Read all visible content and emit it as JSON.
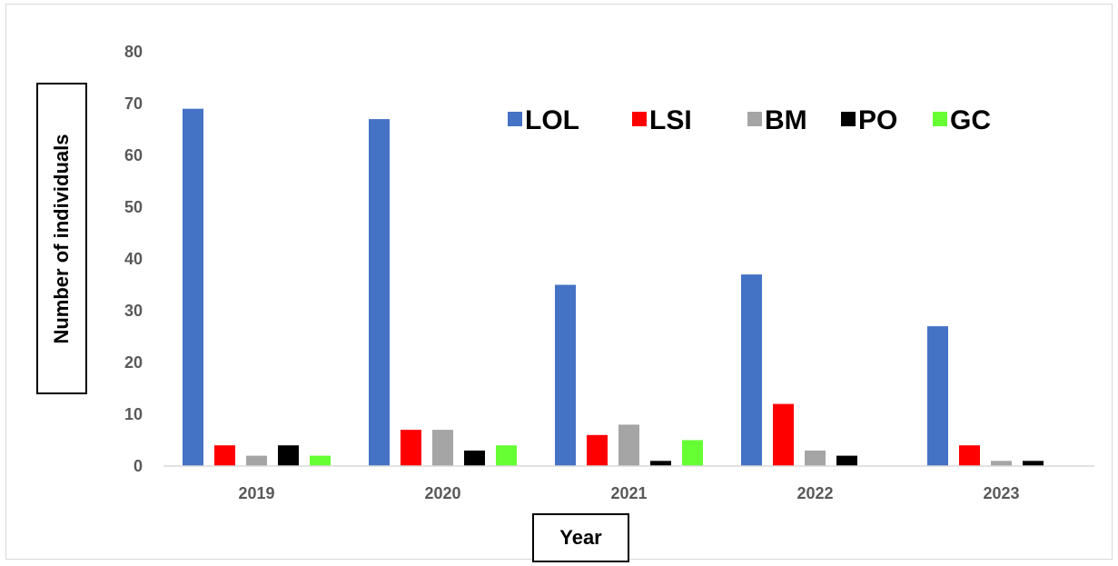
{
  "chart_data": {
    "type": "bar",
    "categories": [
      "2019",
      "2020",
      "2021",
      "2022",
      "2023"
    ],
    "series": [
      {
        "name": "LOL",
        "color": "#4472C4",
        "values": [
          69,
          67,
          35,
          37,
          27
        ]
      },
      {
        "name": "LSI",
        "color": "#FF0000",
        "values": [
          4,
          7,
          6,
          12,
          4
        ]
      },
      {
        "name": "BM",
        "color": "#A5A5A5",
        "values": [
          2,
          7,
          8,
          3,
          1
        ]
      },
      {
        "name": "PO",
        "color": "#000000",
        "values": [
          4,
          3,
          1,
          2,
          1
        ]
      },
      {
        "name": "GC",
        "color": "#66FF33",
        "values": [
          2,
          4,
          5,
          0,
          0
        ]
      }
    ],
    "xlabel": "Year",
    "ylabel": "Number of individuals",
    "ylim": [
      0,
      80
    ],
    "yticks": [
      0,
      10,
      20,
      30,
      40,
      50,
      60,
      70,
      80
    ],
    "grid": false,
    "legend_position": "top-right"
  }
}
